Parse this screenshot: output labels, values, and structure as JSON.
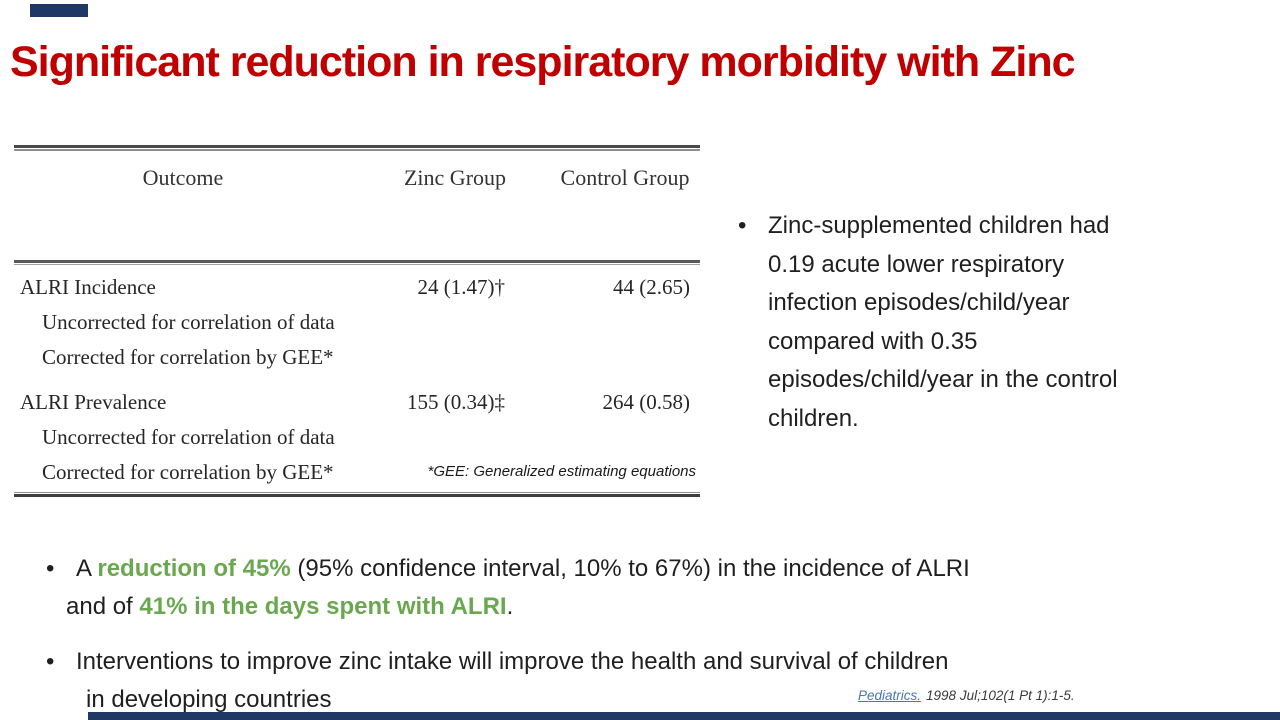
{
  "title": "Significant reduction in respiratory morbidity with Zinc",
  "colors": {
    "title_red": "#C00000",
    "highlight_green": "#6AA84F",
    "accent_navy": "#1F3864",
    "link_blue": "#4777B4"
  },
  "table": {
    "headers": {
      "outcome": "Outcome",
      "zinc": "Zinc Group",
      "control": "Control Group"
    },
    "row1": {
      "label": "ALRI Incidence",
      "zinc": "24 (1.47)†",
      "control": "44 (2.65)",
      "sub1": "Uncorrected for correlation of data",
      "sub2": "Corrected for correlation by GEE*"
    },
    "row2": {
      "label": "ALRI Prevalence",
      "zinc": "155 (0.34)‡",
      "control": "264 (0.58)",
      "sub1": "Uncorrected for correlation of data",
      "sub2": "Corrected for correlation by GEE*"
    },
    "footnote": "*GEE: Generalized estimating equations"
  },
  "side_note": {
    "marker": "•",
    "text": "Zinc-supplemented children had\n0.19 acute lower respiratory\ninfection episodes/child/year\ncompared with 0.35\nepisodes/child/year in the control\nchildren."
  },
  "bullets": {
    "b1": {
      "marker": "•",
      "line1": {
        "s1": "A ",
        "s2": "reduction of 45%",
        "s3": " (95% confidence interval, 10% to 67%) in the incidence of ALRI"
      },
      "line2": {
        "s1": "and of ",
        "s2": "41% in the days spent with ALRI",
        "s3": "."
      }
    },
    "b2": {
      "marker": "•",
      "line1": "Interventions to improve zinc intake will improve the health and survival of children",
      "line2": "in developing countries"
    }
  },
  "citation": {
    "journal": "Pediatrics.",
    "details": "1998 Jul;102(1 Pt 1):1-5."
  }
}
